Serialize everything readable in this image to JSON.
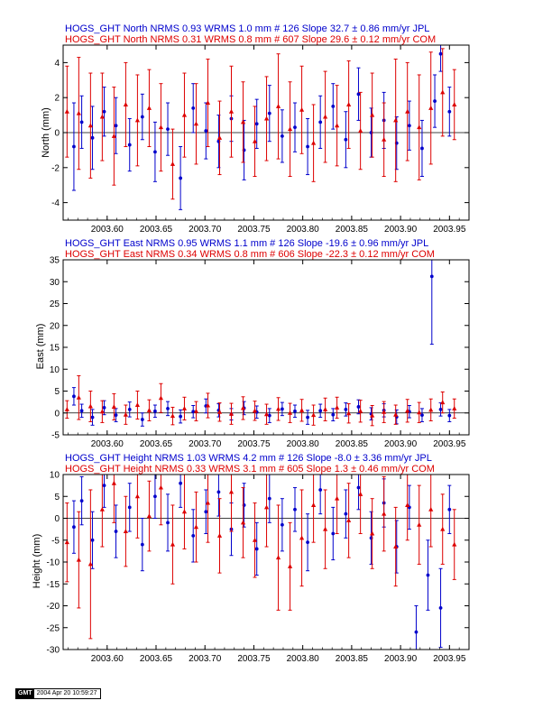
{
  "colors": {
    "jpl": "#0000cc",
    "com": "#dd0000",
    "axis": "#000000",
    "background": "#ffffff"
  },
  "panels": [
    {
      "id": "north",
      "header_jpl": "HOGS_GHT North NRMS 0.93 WRMS  1.0 mm # 126 Slope   32.7 ±  0.86 mm/yr JPL",
      "header_com": "HOGS_GHT North NRMS 0.31 WRMS  0.8 mm # 607 Slope   29.6 ±  0.12 mm/yr COM",
      "ylabel": "North (mm)"
    },
    {
      "id": "east",
      "header_jpl": "HOGS_GHT East NRMS 0.95 WRMS  1.1 mm # 126 Slope  -19.6 ±  0.96 mm/yr JPL",
      "header_com": "HOGS_GHT East NRMS 0.34 WRMS  0.8 mm # 606 Slope  -22.3 ±  0.12 mm/yr COM",
      "ylabel": "East (mm)"
    },
    {
      "id": "height",
      "header_jpl": "HOGS_GHT Height NRMS 1.03 WRMS  4.2 mm # 126 Slope   -8.0 ±  3.36 mm/yr JPL",
      "header_com": "HOGS_GHT Height NRMS 0.33 WRMS  3.1 mm # 605 Slope    1.3 ±  0.46 mm/yr COM",
      "ylabel": "Height (mm)"
    }
  ],
  "footer": {
    "logo": "GMT",
    "timestamp": "2004 Apr 20 10:59:27"
  },
  "chart_data": [
    {
      "type": "scatter",
      "title": "HOGS_GHT North",
      "xlabel": "",
      "ylabel": "North (mm)",
      "xlim": [
        2003.555,
        2003.97
      ],
      "ylim": [
        -5,
        5
      ],
      "xticks": [
        2003.6,
        2003.65,
        2003.7,
        2003.75,
        2003.8,
        2003.85,
        2003.9,
        2003.95
      ],
      "xtick_labels": [
        "2003.60",
        "2003.65",
        "2003.70",
        "2003.75",
        "2003.80",
        "2003.85",
        "2003.90",
        "2003.95"
      ],
      "yticks": [
        -4,
        -2,
        0,
        2,
        4
      ],
      "ytick_labels": [
        "-4",
        "-2",
        "0",
        "2",
        "4"
      ],
      "grid": false,
      "series": [
        {
          "name": "JPL",
          "marker": "circle",
          "color": "#0000cc",
          "x": [
            2003.566,
            2003.574,
            2003.585,
            2003.597,
            2003.609,
            2003.623,
            2003.636,
            2003.649,
            2003.662,
            2003.675,
            2003.688,
            2003.701,
            2003.714,
            2003.727,
            2003.74,
            2003.753,
            2003.766,
            2003.779,
            2003.792,
            2003.805,
            2003.818,
            2003.831,
            2003.844,
            2003.857,
            2003.87,
            2003.883,
            2003.896,
            2003.909,
            2003.922,
            2003.935,
            2003.941,
            2003.95
          ],
          "y": [
            -0.8,
            0.6,
            -0.3,
            1.2,
            0.4,
            -0.7,
            0.9,
            -1.1,
            0.2,
            -2.6,
            1.4,
            0.1,
            -0.5,
            0.8,
            -1.0,
            0.5,
            1.1,
            -0.2,
            0.3,
            -0.8,
            0.6,
            1.5,
            -0.4,
            2.2,
            0.0,
            0.7,
            -0.6,
            0.4,
            -0.9,
            1.8,
            4.5,
            1.2
          ],
          "err": [
            2.5,
            1.5,
            1.8,
            1.4,
            1.6,
            1.5,
            1.3,
            1.7,
            1.5,
            1.8,
            1.4,
            1.6,
            1.5,
            1.3,
            1.7,
            1.4,
            1.6,
            1.5,
            1.4,
            1.6,
            1.5,
            1.3,
            1.6,
            1.5,
            1.4,
            1.6,
            1.5,
            1.4,
            1.6,
            1.5,
            1.0,
            1.4
          ]
        },
        {
          "name": "COM",
          "marker": "triangle",
          "color": "#dd0000",
          "x": [
            2003.559,
            2003.571,
            2003.583,
            2003.595,
            2003.607,
            2003.619,
            2003.631,
            2003.643,
            2003.655,
            2003.667,
            2003.679,
            2003.691,
            2003.703,
            2003.715,
            2003.727,
            2003.739,
            2003.751,
            2003.763,
            2003.775,
            2003.787,
            2003.799,
            2003.811,
            2003.823,
            2003.835,
            2003.847,
            2003.859,
            2003.871,
            2003.883,
            2003.895,
            2003.907,
            2003.919,
            2003.931,
            2003.943,
            2003.955
          ],
          "y": [
            1.2,
            1.1,
            0.4,
            0.9,
            -0.2,
            1.6,
            0.7,
            1.4,
            0.3,
            -1.8,
            1.0,
            0.5,
            1.7,
            -0.3,
            1.2,
            0.6,
            -0.5,
            0.8,
            1.5,
            0.2,
            1.3,
            -0.6,
            0.9,
            0.4,
            1.6,
            0.1,
            1.0,
            -0.4,
            0.7,
            1.2,
            0.3,
            1.4,
            2.3,
            1.6
          ],
          "err": [
            2.6,
            3.2,
            3.0,
            2.5,
            2.8,
            2.4,
            2.6,
            2.2,
            2.5,
            2.0,
            2.4,
            2.3,
            2.5,
            2.1,
            2.6,
            2.3,
            2.0,
            2.4,
            3.0,
            2.7,
            2.5,
            2.2,
            2.6,
            2.3,
            2.5,
            2.2,
            2.4,
            2.1,
            3.5,
            2.8,
            3.0,
            3.2,
            2.5,
            2.0
          ]
        }
      ]
    },
    {
      "type": "scatter",
      "title": "HOGS_GHT East",
      "xlabel": "",
      "ylabel": "East (mm)",
      "xlim": [
        2003.555,
        2003.97
      ],
      "ylim": [
        -5,
        35
      ],
      "xticks": [
        2003.6,
        2003.65,
        2003.7,
        2003.75,
        2003.8,
        2003.85,
        2003.9,
        2003.95
      ],
      "xtick_labels": [
        "2003.60",
        "2003.65",
        "2003.70",
        "2003.75",
        "2003.80",
        "2003.85",
        "2003.90",
        "2003.95"
      ],
      "yticks": [
        -5,
        0,
        5,
        10,
        15,
        20,
        25,
        30,
        35
      ],
      "ytick_labels": [
        "-5",
        "0",
        "5",
        "10",
        "15",
        "20",
        "25",
        "30",
        "35"
      ],
      "grid": false,
      "series": [
        {
          "name": "JPL",
          "marker": "circle",
          "color": "#0000cc",
          "x": [
            2003.566,
            2003.574,
            2003.585,
            2003.597,
            2003.609,
            2003.623,
            2003.636,
            2003.649,
            2003.662,
            2003.675,
            2003.688,
            2003.701,
            2003.714,
            2003.727,
            2003.74,
            2003.753,
            2003.766,
            2003.779,
            2003.792,
            2003.805,
            2003.818,
            2003.831,
            2003.844,
            2003.857,
            2003.87,
            2003.883,
            2003.896,
            2003.909,
            2003.922,
            2003.932,
            2003.941,
            2003.95
          ],
          "y": [
            3.8,
            0.5,
            -1.0,
            1.2,
            -0.5,
            0.8,
            -1.5,
            0.4,
            1.0,
            -0.8,
            0.3,
            1.6,
            0.6,
            -0.3,
            1.1,
            0.2,
            -0.6,
            0.9,
            0.4,
            -1.0,
            0.5,
            -0.4,
            0.8,
            1.4,
            -0.2,
            0.6,
            -0.9,
            0.3,
            -0.5,
            31.2,
            0.8,
            -0.6
          ],
          "err": [
            2.0,
            1.5,
            1.8,
            1.6,
            1.5,
            1.7,
            1.5,
            1.4,
            1.6,
            1.5,
            1.4,
            1.6,
            1.5,
            1.3,
            1.5,
            1.4,
            1.6,
            1.5,
            1.4,
            1.6,
            1.5,
            1.4,
            1.5,
            1.6,
            1.4,
            1.5,
            1.6,
            1.4,
            1.5,
            15.5,
            1.5,
            1.4
          ]
        },
        {
          "name": "COM",
          "marker": "triangle",
          "color": "#dd0000",
          "x": [
            2003.559,
            2003.571,
            2003.583,
            2003.595,
            2003.607,
            2003.619,
            2003.631,
            2003.643,
            2003.655,
            2003.667,
            2003.679,
            2003.691,
            2003.703,
            2003.715,
            2003.727,
            2003.739,
            2003.751,
            2003.763,
            2003.775,
            2003.787,
            2003.799,
            2003.811,
            2003.823,
            2003.835,
            2003.847,
            2003.859,
            2003.871,
            2003.883,
            2003.895,
            2003.907,
            2003.919,
            2003.931,
            2003.943,
            2003.955
          ],
          "y": [
            0.8,
            3.5,
            1.5,
            0.3,
            1.4,
            -0.4,
            1.8,
            0.6,
            3.4,
            -0.7,
            1.0,
            0.4,
            1.7,
            0.2,
            -0.2,
            1.1,
            0.5,
            -0.3,
            0.9,
            0.0,
            0.6,
            -0.5,
            0.8,
            1.2,
            -0.1,
            0.4,
            -0.6,
            0.2,
            -0.4,
            0.5,
            0.1,
            0.7,
            2.4,
            1.0
          ],
          "err": [
            2.0,
            5.0,
            3.5,
            2.5,
            3.0,
            2.2,
            3.2,
            2.4,
            3.3,
            2.0,
            2.6,
            2.2,
            2.8,
            2.1,
            2.4,
            2.6,
            2.2,
            2.3,
            2.6,
            2.2,
            2.5,
            2.3,
            2.6,
            2.4,
            2.2,
            2.5,
            2.3,
            2.4,
            2.2,
            2.6,
            2.3,
            2.5,
            2.4,
            2.2
          ]
        }
      ]
    },
    {
      "type": "scatter",
      "title": "HOGS_GHT Height",
      "xlabel": "",
      "ylabel": "Height (mm)",
      "xlim": [
        2003.555,
        2003.97
      ],
      "ylim": [
        -30,
        10
      ],
      "xticks": [
        2003.6,
        2003.65,
        2003.7,
        2003.75,
        2003.8,
        2003.85,
        2003.9,
        2003.95
      ],
      "xtick_labels": [
        "2003.60",
        "2003.65",
        "2003.70",
        "2003.75",
        "2003.80",
        "2003.85",
        "2003.90",
        "2003.95"
      ],
      "yticks": [
        -30,
        -25,
        -20,
        -15,
        -10,
        -5,
        0,
        5,
        10
      ],
      "ytick_labels": [
        "-30",
        "-25",
        "-20",
        "-15",
        "-10",
        "-5",
        "0",
        "5",
        "10"
      ],
      "grid": false,
      "series": [
        {
          "name": "JPL",
          "marker": "circle",
          "color": "#0000cc",
          "x": [
            2003.566,
            2003.574,
            2003.585,
            2003.597,
            2003.609,
            2003.623,
            2003.636,
            2003.649,
            2003.662,
            2003.675,
            2003.688,
            2003.701,
            2003.714,
            2003.727,
            2003.74,
            2003.753,
            2003.766,
            2003.779,
            2003.792,
            2003.805,
            2003.818,
            2003.831,
            2003.844,
            2003.857,
            2003.87,
            2003.883,
            2003.896,
            2003.909,
            2003.916,
            2003.928,
            2003.941,
            2003.95
          ],
          "y": [
            -2.0,
            4.0,
            -5.0,
            7.5,
            -3.0,
            2.5,
            -6.0,
            5.0,
            -1.0,
            8.0,
            -4.0,
            1.5,
            6.0,
            -2.5,
            3.0,
            -7.0,
            4.5,
            -1.5,
            2.0,
            -5.5,
            6.5,
            -3.5,
            1.0,
            7.0,
            -4.5,
            3.5,
            -6.5,
            2.5,
            -26.0,
            -13.0,
            -20.5,
            2.0
          ],
          "err": [
            6.0,
            5.5,
            6.5,
            5.0,
            6.0,
            5.5,
            6.0,
            5.0,
            6.5,
            5.5,
            6.0,
            5.0,
            5.5,
            6.0,
            5.0,
            6.0,
            5.5,
            6.0,
            5.0,
            6.5,
            5.5,
            6.0,
            5.5,
            5.0,
            6.0,
            5.5,
            6.0,
            5.0,
            6.0,
            8.0,
            9.0,
            5.5
          ]
        },
        {
          "name": "COM",
          "marker": "triangle",
          "color": "#dd0000",
          "x": [
            2003.559,
            2003.571,
            2003.583,
            2003.595,
            2003.607,
            2003.619,
            2003.631,
            2003.643,
            2003.655,
            2003.667,
            2003.679,
            2003.691,
            2003.703,
            2003.715,
            2003.727,
            2003.739,
            2003.751,
            2003.763,
            2003.775,
            2003.787,
            2003.799,
            2003.811,
            2003.823,
            2003.835,
            2003.847,
            2003.859,
            2003.871,
            2003.883,
            2003.895,
            2003.907,
            2003.919,
            2003.931,
            2003.943,
            2003.955
          ],
          "y": [
            -5.5,
            -9.5,
            -10.5,
            2.0,
            8.0,
            -3.0,
            5.0,
            0.5,
            7.0,
            -6.0,
            1.5,
            -2.0,
            3.5,
            -4.0,
            6.0,
            -1.0,
            -5.0,
            2.5,
            -9.0,
            -11.0,
            -4.5,
            3.0,
            -2.5,
            4.5,
            -0.5,
            5.5,
            -3.5,
            1.0,
            -6.5,
            3.0,
            -1.5,
            2.0,
            -2.5,
            -6.0
          ],
          "err": [
            9.0,
            11.0,
            17.0,
            8.5,
            9.0,
            8.0,
            9.5,
            8.0,
            8.5,
            9.0,
            8.5,
            8.0,
            9.0,
            8.5,
            9.0,
            8.0,
            8.5,
            9.0,
            12.0,
            10.0,
            11.0,
            8.5,
            9.0,
            8.0,
            8.5,
            9.0,
            8.0,
            8.5,
            9.0,
            8.0,
            9.0,
            8.5,
            8.0,
            8.0
          ]
        }
      ]
    }
  ]
}
